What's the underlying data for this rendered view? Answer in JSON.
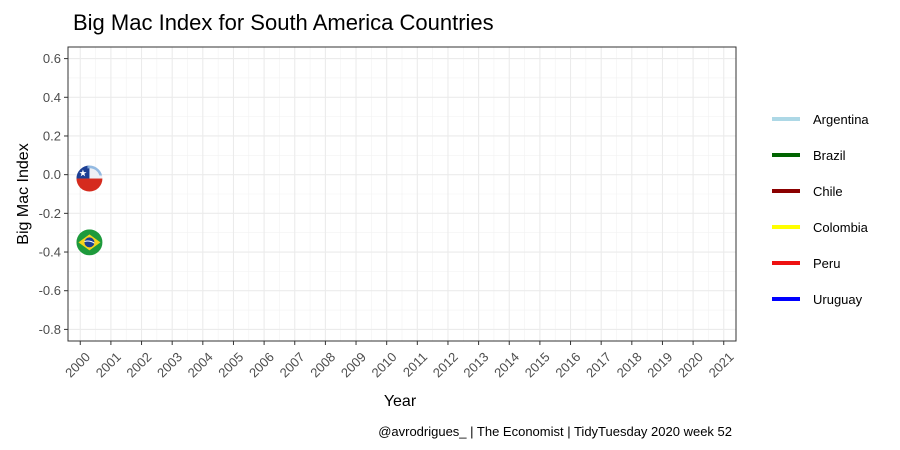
{
  "chart_data": {
    "type": "scatter",
    "title": "Big Mac Index for South America Countries",
    "xlabel": "Year",
    "ylabel": "Big Mac Index",
    "caption": "@avrodrigues_ | The Economist | TidyTuesday 2020 week 52",
    "xlim": [
      1999.6,
      2021.4
    ],
    "ylim": [
      -0.86,
      0.66
    ],
    "x_ticks": [
      "2000",
      "2001",
      "2002",
      "2003",
      "2004",
      "2005",
      "2006",
      "2007",
      "2008",
      "2009",
      "2010",
      "2011",
      "2012",
      "2013",
      "2014",
      "2015",
      "2016",
      "2017",
      "2018",
      "2019",
      "2020",
      "2021"
    ],
    "y_ticks": [
      0.6,
      0.4,
      0.2,
      0.0,
      -0.2,
      -0.4,
      -0.6,
      -0.8
    ],
    "y_tick_labels": [
      "0.6",
      "0.4",
      "0.2",
      "0.0",
      "-0.2",
      "-0.4",
      "-0.6",
      "-0.8"
    ],
    "grid": true,
    "legend_position": "right",
    "series": [
      {
        "name": "Argentina",
        "color": "#add8e6",
        "points": []
      },
      {
        "name": "Brazil",
        "color": "#006400",
        "points": [
          {
            "x": 2000.3,
            "y": -0.35,
            "marker": "brazil-flag"
          }
        ]
      },
      {
        "name": "Chile",
        "color": "#8b0000",
        "points": [
          {
            "x": 2000.3,
            "y": -0.02,
            "marker": "chile-flag"
          }
        ]
      },
      {
        "name": "Colombia",
        "color": "#ffff00",
        "points": []
      },
      {
        "name": "Peru",
        "color": "#ee1111",
        "points": []
      },
      {
        "name": "Uruguay",
        "color": "#0000ff",
        "points": []
      }
    ]
  }
}
